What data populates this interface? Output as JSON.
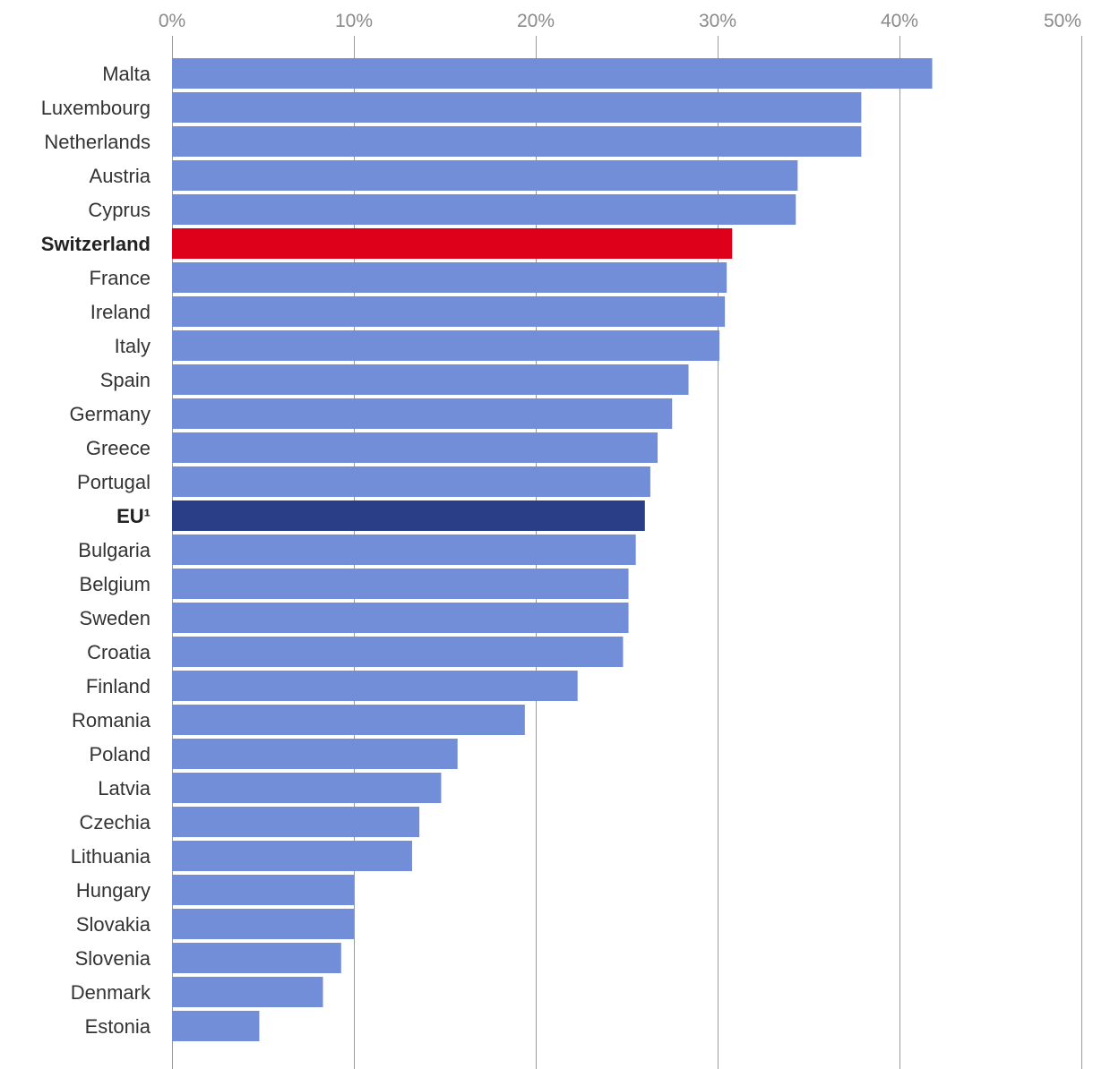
{
  "chart_data": {
    "type": "bar",
    "orientation": "horizontal",
    "title": "",
    "xlabel": "",
    "ylabel": "",
    "xlim": [
      0,
      50
    ],
    "x_ticks": [
      0,
      10,
      20,
      30,
      40,
      50
    ],
    "x_tick_labels": [
      "0%",
      "10%",
      "20%",
      "30%",
      "40%",
      "50%"
    ],
    "x_axis_position": "top",
    "grid": "vertical",
    "legend": "none",
    "categories": [
      "Malta",
      "Luxembourg",
      "Netherlands",
      "Austria",
      "Cyprus",
      "Switzerland",
      "France",
      "Ireland",
      "Italy",
      "Spain",
      "Germany",
      "Greece",
      "Portugal",
      "EU¹",
      "Bulgaria",
      "Belgium",
      "Sweden",
      "Croatia",
      "Finland",
      "Romania",
      "Poland",
      "Latvia",
      "Czechia",
      "Lithuania",
      "Hungary",
      "Slovakia",
      "Slovenia",
      "Denmark",
      "Estonia"
    ],
    "values": [
      41.8,
      37.9,
      37.9,
      34.4,
      34.3,
      30.8,
      30.5,
      30.4,
      30.1,
      28.4,
      27.5,
      26.7,
      26.3,
      26.0,
      25.5,
      25.1,
      25.1,
      24.8,
      22.3,
      19.4,
      15.7,
      14.8,
      13.6,
      13.2,
      10.0,
      10.0,
      9.3,
      8.3,
      4.8
    ],
    "colors": {
      "default": "#728ed8",
      "Switzerland": "#de001b",
      "EU¹": "#2a3e87"
    },
    "bold_categories": [
      "Switzerland",
      "EU¹"
    ]
  }
}
